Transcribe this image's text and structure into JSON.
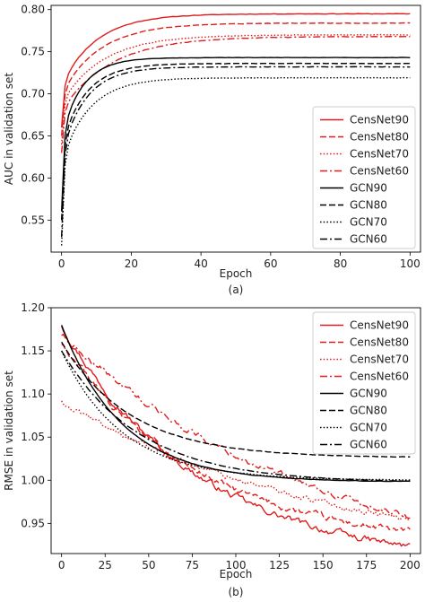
{
  "chart_data": [
    {
      "type": "line",
      "caption": "(a)",
      "xlabel": "Epoch",
      "ylabel": "AUC in validation set",
      "xlim": [
        -3,
        103
      ],
      "ylim": [
        0.512,
        0.805
      ],
      "xticks": [
        0,
        20,
        40,
        60,
        80,
        100
      ],
      "yticks": [
        0.55,
        0.6,
        0.65,
        0.7,
        0.75,
        0.8
      ],
      "ytick_decimals": 2,
      "legend_position": "lower-right",
      "grid": false,
      "series": [
        {
          "name": "CensNet90",
          "color": "#e01b1b",
          "dash": "solid",
          "kind": "auc",
          "start": 0.66,
          "final": 0.795,
          "tau": 10,
          "init_jump": 0.05,
          "noise": 0.0006
        },
        {
          "name": "CensNet80",
          "color": "#e01b1b",
          "dash": "dashed",
          "kind": "auc",
          "start": 0.65,
          "final": 0.784,
          "tau": 11,
          "init_jump": 0.05,
          "noise": 0.0006
        },
        {
          "name": "CensNet70",
          "color": "#e01b1b",
          "dash": "dotted",
          "kind": "auc",
          "start": 0.64,
          "final": 0.77,
          "tau": 12,
          "init_jump": 0.05,
          "noise": 0.0006
        },
        {
          "name": "CensNet60",
          "color": "#e01b1b",
          "dash": "dashdot",
          "kind": "auc",
          "start": 0.63,
          "final": 0.768,
          "tau": 14,
          "init_jump": 0.05,
          "noise": 0.0006
        },
        {
          "name": "GCN90",
          "color": "#000000",
          "dash": "solid",
          "kind": "auc",
          "start": 0.56,
          "final": 0.743,
          "tau": 6,
          "init_jump": 0.09,
          "noise": 0.0004
        },
        {
          "name": "GCN80",
          "color": "#000000",
          "dash": "dashed",
          "kind": "auc",
          "start": 0.55,
          "final": 0.736,
          "tau": 7,
          "init_jump": 0.09,
          "noise": 0.0004
        },
        {
          "name": "GCN70",
          "color": "#000000",
          "dash": "dotted",
          "kind": "auc",
          "start": 0.52,
          "final": 0.719,
          "tau": 8,
          "init_jump": 0.1,
          "noise": 0.0004
        },
        {
          "name": "GCN60",
          "color": "#000000",
          "dash": "dashdot",
          "kind": "auc",
          "start": 0.53,
          "final": 0.732,
          "tau": 7,
          "init_jump": 0.1,
          "noise": 0.0004
        }
      ]
    },
    {
      "type": "line",
      "caption": "(b)",
      "xlabel": "Epoch",
      "ylabel": "RMSE in validation set",
      "xlim": [
        -6,
        206
      ],
      "ylim": [
        0.915,
        1.2
      ],
      "xticks": [
        0,
        25,
        50,
        75,
        100,
        125,
        150,
        175,
        200
      ],
      "yticks": [
        0.95,
        1.0,
        1.05,
        1.1,
        1.15,
        1.2
      ],
      "ytick_decimals": 2,
      "legend_position": "upper-right",
      "grid": false,
      "series": [
        {
          "name": "CensNet90",
          "color": "#e01b1b",
          "dash": "solid",
          "kind": "rmse",
          "start": 1.18,
          "final": 0.9,
          "tau": 80,
          "noise": 0.006
        },
        {
          "name": "CensNet80",
          "color": "#e01b1b",
          "dash": "dashed",
          "kind": "rmse",
          "start": 1.16,
          "final": 0.92,
          "tau": 80,
          "noise": 0.006
        },
        {
          "name": "CensNet70",
          "color": "#e01b1b",
          "dash": "dotted",
          "kind": "rmse",
          "start": 1.09,
          "final": 0.9,
          "tau": 160,
          "noise": 0.005
        },
        {
          "name": "CensNet60",
          "color": "#e01b1b",
          "dash": "dashdot",
          "kind": "rmse",
          "start": 1.17,
          "final": 0.88,
          "tau": 150,
          "noise": 0.006
        },
        {
          "name": "GCN90",
          "color": "#000000",
          "dash": "solid",
          "kind": "rmse",
          "start": 1.18,
          "final": 0.998,
          "tau": 35,
          "noise": 0.0004
        },
        {
          "name": "GCN80",
          "color": "#000000",
          "dash": "dashed",
          "kind": "rmse",
          "start": 1.16,
          "final": 1.026,
          "tau": 40,
          "noise": 0.0004
        },
        {
          "name": "GCN70",
          "color": "#000000",
          "dash": "dotted",
          "kind": "rmse",
          "start": 1.15,
          "final": 1.0,
          "tau": 35,
          "noise": 0.0004
        },
        {
          "name": "GCN60",
          "color": "#000000",
          "dash": "dashdot",
          "kind": "rmse",
          "start": 1.15,
          "final": 0.997,
          "tau": 45,
          "noise": 0.0004
        }
      ]
    }
  ]
}
